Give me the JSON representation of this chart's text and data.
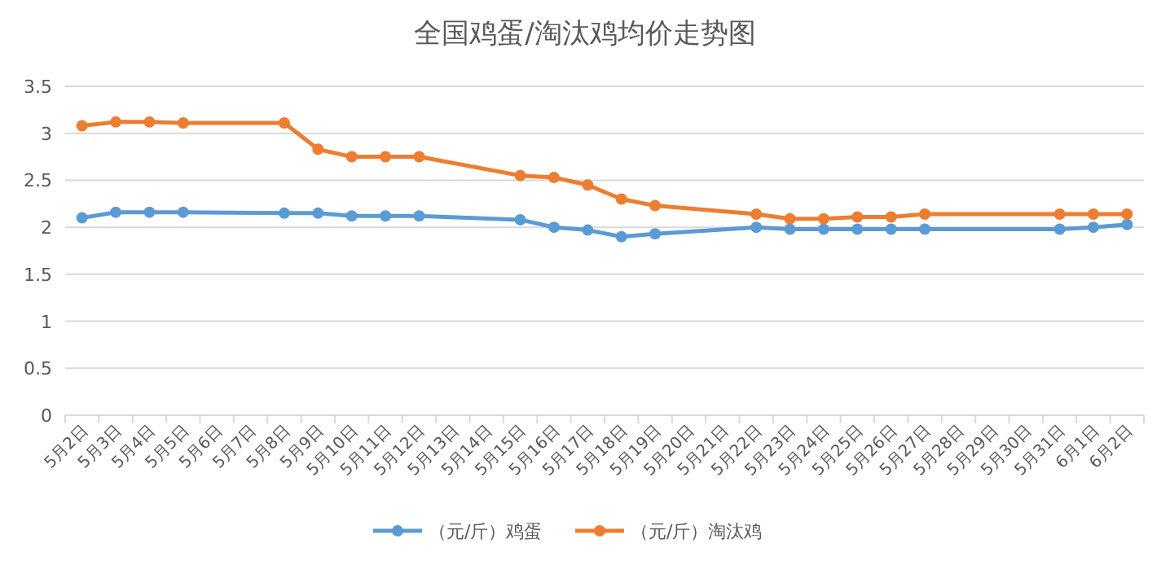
{
  "chart_data": {
    "type": "line",
    "title": "全国鸡蛋/淘汰鸡均价走势图",
    "categories": [
      "5月2日",
      "5月3日",
      "5月4日",
      "5月5日",
      "5月6日",
      "5月7日",
      "5月8日",
      "5月9日",
      "5月10日",
      "5月11日",
      "5月12日",
      "5月13日",
      "5月14日",
      "5月15日",
      "5月16日",
      "5月17日",
      "5月18日",
      "5月19日",
      "5月20日",
      "5月21日",
      "5月22日",
      "5月23日",
      "5月24日",
      "5月25日",
      "5月26日",
      "5月27日",
      "5月28日",
      "5月29日",
      "5月30日",
      "5月31日",
      "6月1日",
      "6月2日"
    ],
    "series": [
      {
        "name": "（元/斤）鸡蛋",
        "color": "#5b9bd5",
        "values": [
          2.1,
          2.16,
          2.16,
          2.16,
          null,
          null,
          2.15,
          2.15,
          2.12,
          2.12,
          2.12,
          null,
          null,
          2.08,
          2.0,
          1.97,
          1.9,
          1.93,
          null,
          null,
          2.0,
          1.98,
          1.98,
          1.98,
          1.98,
          1.98,
          null,
          null,
          null,
          1.98,
          2.0,
          2.03
        ]
      },
      {
        "name": "（元/斤）淘汰鸡",
        "color": "#ed7d31",
        "values": [
          3.08,
          3.12,
          3.12,
          3.11,
          null,
          null,
          3.11,
          2.83,
          2.75,
          2.75,
          2.75,
          null,
          null,
          2.55,
          2.53,
          2.45,
          2.3,
          2.23,
          null,
          null,
          2.14,
          2.09,
          2.09,
          2.11,
          2.11,
          2.14,
          null,
          null,
          null,
          2.14,
          2.14,
          2.14
        ]
      }
    ],
    "ylim": [
      0,
      3.5
    ],
    "yticks": [
      0,
      0.5,
      1,
      1.5,
      2,
      2.5,
      3,
      3.5
    ],
    "grid": "y",
    "legend": "bottom",
    "marker": "circle",
    "line_style": "solid"
  }
}
